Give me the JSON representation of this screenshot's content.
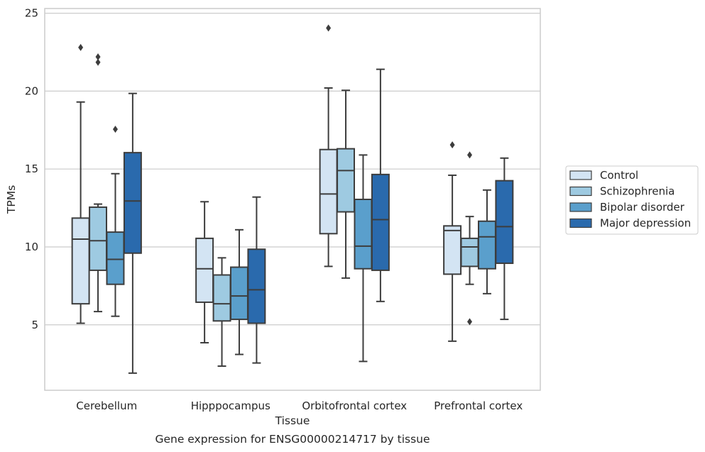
{
  "caption": "Gene expression for ENSG00000214717 by tissue",
  "chart_data": {
    "type": "box",
    "xlabel": "Tissue",
    "ylabel": "TPMs",
    "ylim": [
      0.8,
      25.3
    ],
    "yticks": [
      5,
      10,
      15,
      20,
      25
    ],
    "grid": "horizontal",
    "legend_position": "right",
    "categories": [
      "Cerebellum",
      "Hipppocampus",
      "Orbitofrontal cortex",
      "Prefrontal cortex"
    ],
    "series": [
      {
        "name": "Control",
        "color": "#d3e4f3",
        "boxes": [
          {
            "whislo": 5.1,
            "q1": 6.35,
            "med": 10.5,
            "q3": 11.85,
            "whishi": 19.3,
            "fliers": [
              22.8
            ]
          },
          {
            "whislo": 3.85,
            "q1": 6.45,
            "med": 8.6,
            "q3": 10.55,
            "whishi": 12.9,
            "fliers": []
          },
          {
            "whislo": 8.75,
            "q1": 10.85,
            "med": 13.4,
            "q3": 16.25,
            "whishi": 20.2,
            "fliers": [
              24.05
            ]
          },
          {
            "whislo": 3.95,
            "q1": 8.25,
            "med": 11.05,
            "q3": 11.35,
            "whishi": 14.6,
            "fliers": [
              16.55
            ]
          }
        ]
      },
      {
        "name": "Schizophrenia",
        "color": "#9ecae1",
        "boxes": [
          {
            "whislo": 5.85,
            "q1": 8.5,
            "med": 10.4,
            "q3": 12.55,
            "whishi": 12.75,
            "fliers": [
              21.85,
              22.2
            ]
          },
          {
            "whislo": 2.35,
            "q1": 5.25,
            "med": 6.35,
            "q3": 8.2,
            "whishi": 9.3,
            "fliers": []
          },
          {
            "whislo": 8.0,
            "q1": 12.25,
            "med": 14.9,
            "q3": 16.3,
            "whishi": 20.05,
            "fliers": []
          },
          {
            "whislo": 7.6,
            "q1": 8.75,
            "med": 10.0,
            "q3": 10.55,
            "whishi": 11.95,
            "fliers": [
              5.2,
              15.9
            ]
          }
        ]
      },
      {
        "name": "Bipolar disorder",
        "color": "#5a9fcc",
        "boxes": [
          {
            "whislo": 5.55,
            "q1": 7.6,
            "med": 9.2,
            "q3": 10.95,
            "whishi": 14.7,
            "fliers": [
              17.55
            ]
          },
          {
            "whislo": 3.1,
            "q1": 5.35,
            "med": 6.85,
            "q3": 8.7,
            "whishi": 11.1,
            "fliers": []
          },
          {
            "whislo": 2.65,
            "q1": 8.6,
            "med": 10.05,
            "q3": 13.05,
            "whishi": 15.9,
            "fliers": []
          },
          {
            "whislo": 7.0,
            "q1": 8.6,
            "med": 10.65,
            "q3": 11.65,
            "whishi": 13.65,
            "fliers": []
          }
        ]
      },
      {
        "name": "Major depression",
        "color": "#2a6aad",
        "boxes": [
          {
            "whislo": 1.9,
            "q1": 9.6,
            "med": 12.95,
            "q3": 16.05,
            "whishi": 19.85,
            "fliers": []
          },
          {
            "whislo": 2.55,
            "q1": 5.1,
            "med": 7.25,
            "q3": 9.85,
            "whishi": 13.2,
            "fliers": []
          },
          {
            "whislo": 6.5,
            "q1": 8.5,
            "med": 11.75,
            "q3": 14.65,
            "whishi": 21.4,
            "fliers": []
          },
          {
            "whislo": 5.35,
            "q1": 8.95,
            "med": 11.3,
            "q3": 14.25,
            "whishi": 15.7,
            "fliers": []
          }
        ]
      }
    ]
  }
}
